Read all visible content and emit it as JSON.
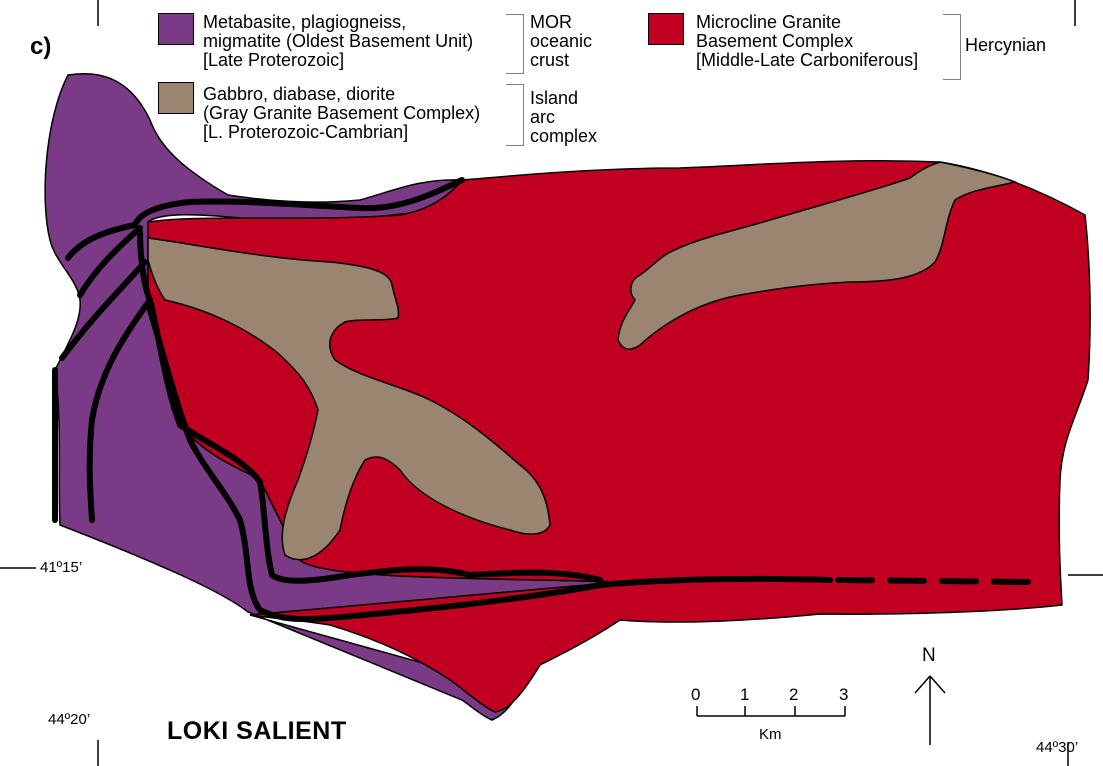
{
  "panel_label": "c)",
  "title": "LOKI SALIENT",
  "colors": {
    "oldest_basement": "#7b3a86",
    "gray_granite": "#9a8570",
    "microcline_granite": "#c10021",
    "fault_line": "#000000"
  },
  "legend": {
    "unit1": {
      "line1": "Metabasite, plagiogneiss,",
      "line2": "migmatite (Oldest Basement Unit)",
      "line3": "[Late Proterozoic]",
      "group_line1": "MOR",
      "group_line2": "oceanic",
      "group_line3": "crust"
    },
    "unit2": {
      "line1": "Gabbro, diabase, diorite",
      "line2": "(Gray Granite Basement Complex)",
      "line3": "[L. Proterozoic-Cambrian]",
      "group_line1": "Island",
      "group_line2": "arc",
      "group_line3": "complex"
    },
    "unit3": {
      "line1": "Microcline Granite",
      "line2": "Basement Complex",
      "line3": "[Middle-Late Carboniferous]",
      "group_line1": "Hercynian"
    }
  },
  "coordinates": {
    "lat_left": "41º15’",
    "lon_left": "44º20’",
    "lon_right": "44º30’"
  },
  "scale_bar": {
    "ticks": [
      "0",
      "1",
      "2",
      "3"
    ],
    "unit": "Km"
  },
  "north_arrow": {
    "label": "N"
  }
}
